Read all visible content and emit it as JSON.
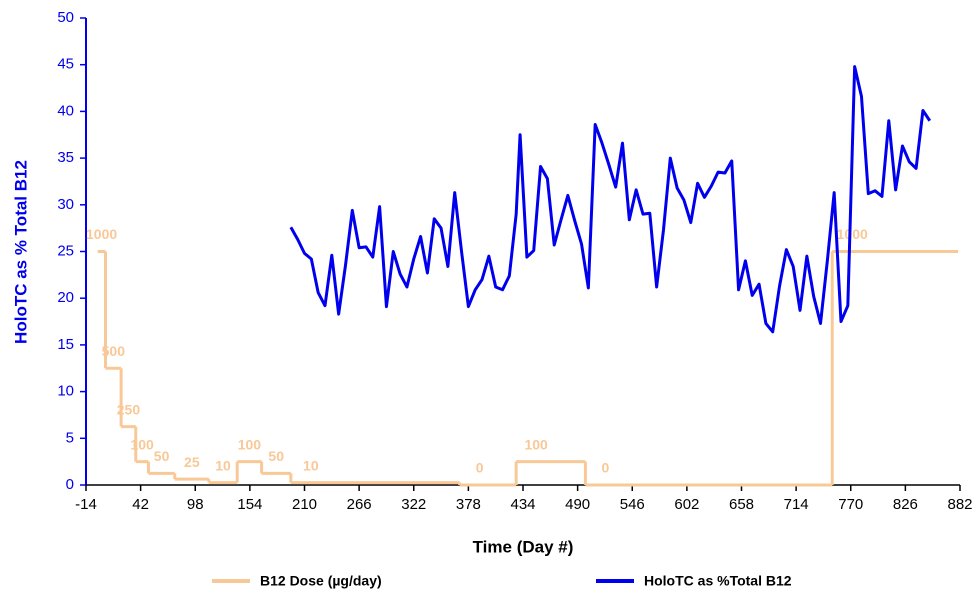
{
  "chart_data": {
    "type": "line",
    "x_label": "Time (Day #)",
    "y_label": "HoloTC as % Total B12",
    "xlim": [
      -14,
      882
    ],
    "xticks": [
      -14,
      42,
      98,
      154,
      210,
      266,
      322,
      378,
      434,
      490,
      546,
      602,
      658,
      714,
      770,
      826,
      882
    ],
    "ylim": [
      0,
      50
    ],
    "yticks": [
      0,
      5,
      10,
      15,
      20,
      25,
      30,
      35,
      40,
      45,
      50
    ],
    "y2lim": [
      0,
      2000
    ],
    "legend": "bottom",
    "series": [
      {
        "name": "B12 Dose (µg/day)",
        "color": "#f9c897",
        "axis": "y2",
        "step": true,
        "x": [
          -2,
          6,
          22,
          37,
          50,
          77,
          112,
          141,
          166,
          196,
          369,
          427,
          498,
          751,
          880
        ],
        "values": [
          1000,
          500,
          250,
          100,
          50,
          25,
          10,
          100,
          50,
          10,
          0,
          100,
          0,
          1000,
          1000
        ]
      },
      {
        "name": "HoloTC as %Total B12",
        "color": "#0000ee",
        "x": [
          196,
          203,
          210,
          217,
          224,
          231,
          238,
          245,
          252,
          259,
          266,
          273,
          280,
          287,
          294,
          301,
          308,
          315,
          322,
          329,
          336,
          343,
          350,
          357,
          364,
          371,
          378,
          385,
          392,
          399,
          406,
          413,
          420,
          427,
          431,
          438,
          445,
          452,
          459,
          466,
          473,
          480,
          487,
          494,
          501,
          508,
          515,
          522,
          529,
          536,
          543,
          550,
          557,
          564,
          571,
          578,
          585,
          592,
          599,
          606,
          613,
          620,
          627,
          634,
          641,
          648,
          655,
          662,
          669,
          676,
          683,
          690,
          697,
          704,
          711,
          718,
          725,
          732,
          739,
          746,
          753,
          760,
          767,
          774,
          781,
          788,
          795,
          802,
          809,
          816,
          823,
          830,
          837,
          844,
          851
        ],
        "values": [
          27.6,
          26.3,
          24.8,
          24.2,
          20.6,
          19.2,
          24.6,
          18.3,
          23.5,
          29.4,
          25.4,
          25.5,
          24.4,
          29.8,
          19.1,
          25.0,
          22.6,
          21.2,
          24.2,
          26.6,
          22.7,
          28.5,
          27.5,
          23.4,
          31.3,
          25.0,
          19.1,
          20.9,
          22.0,
          24.5,
          21.2,
          20.9,
          22.4,
          29.0,
          37.5,
          24.4,
          25.1,
          34.1,
          32.8,
          25.7,
          28.4,
          31.0,
          28.3,
          25.8,
          21.1,
          38.6,
          36.6,
          34.3,
          31.9,
          36.6,
          28.4,
          31.6,
          29.0,
          29.1,
          21.2,
          27.3,
          35.0,
          31.8,
          30.5,
          28.1,
          32.3,
          30.8,
          32.0,
          33.5,
          33.4,
          34.7,
          20.9,
          24.0,
          20.3,
          21.5,
          17.3,
          16.4,
          21.3,
          25.2,
          23.4,
          18.7,
          24.5,
          20.2,
          17.3,
          24.0,
          31.3,
          17.5,
          19.2,
          44.8,
          41.6,
          31.2,
          31.5,
          30.9,
          39.0,
          31.6,
          36.3,
          34.6,
          33.9,
          40.1,
          39.0
        ]
      }
    ]
  }
}
